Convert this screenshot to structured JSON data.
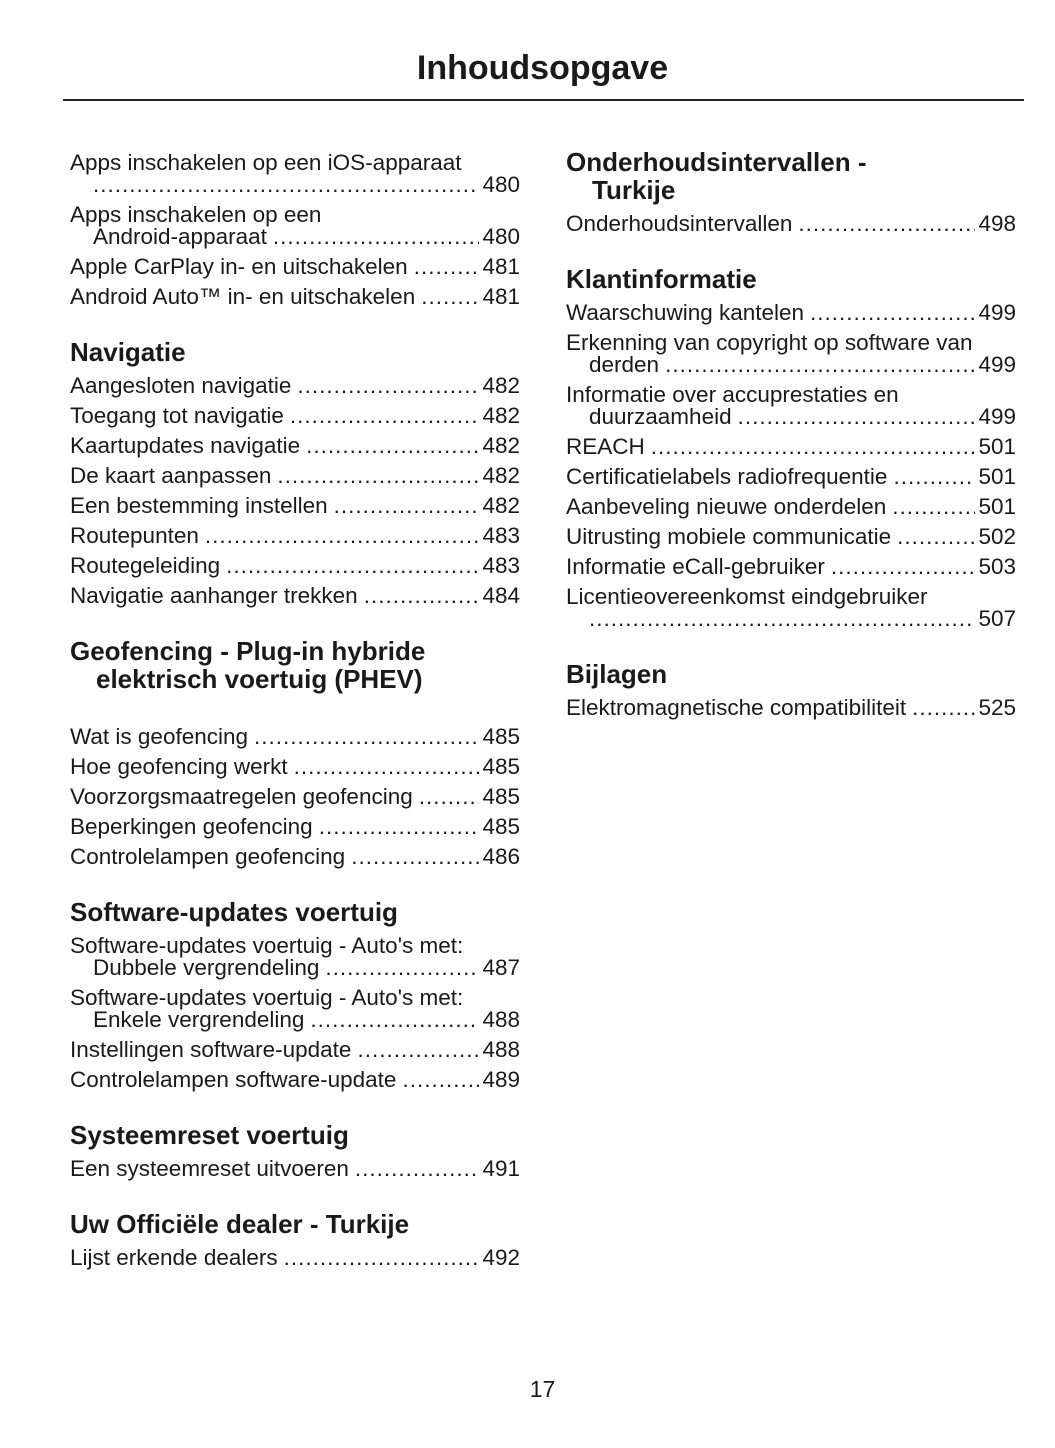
{
  "title": "Inhoudsopgave",
  "page_number": "17",
  "left": [
    {
      "heading": null,
      "entries": [
        {
          "text": "Apps inschakelen op een iOS-apparaat",
          "cont": "",
          "page": "480"
        },
        {
          "text": "Apps inschakelen op een",
          "cont": "Android-apparaat",
          "page": "480"
        },
        {
          "text": "Apple CarPlay in- en uitschakelen",
          "page": "481"
        },
        {
          "text": "Android Auto™ in- en uitschakelen",
          "page": "481"
        }
      ]
    },
    {
      "heading": "Navigatie",
      "entries": [
        {
          "text": "Aangesloten navigatie",
          "page": "482"
        },
        {
          "text": "Toegang tot navigatie",
          "page": "482"
        },
        {
          "text": "Kaartupdates navigatie",
          "page": "482"
        },
        {
          "text": "De kaart aanpassen",
          "page": "482"
        },
        {
          "text": "Een bestemming instellen",
          "page": "482"
        },
        {
          "text": "Routepunten",
          "page": "483"
        },
        {
          "text": "Routegeleiding",
          "page": "483"
        },
        {
          "text": "Navigatie aanhanger trekken",
          "page": "484"
        }
      ]
    },
    {
      "heading": "Geofencing - Plug-in hybride",
      "heading_cont": "elektrisch voertuig (PHEV)",
      "entries": [
        {
          "text": "Wat is geofencing",
          "page": "485"
        },
        {
          "text": "Hoe geofencing werkt",
          "page": "485"
        },
        {
          "text": "Voorzorgsmaatregelen geofencing",
          "page": "485"
        },
        {
          "text": "Beperkingen geofencing",
          "page": "485"
        },
        {
          "text": "Controlelampen geofencing",
          "page": "486"
        }
      ]
    },
    {
      "heading": "Software-updates voertuig",
      "entries": [
        {
          "text": "Software-updates voertuig - Auto's met:",
          "cont": "Dubbele vergrendeling",
          "page": "487"
        },
        {
          "text": "Software-updates voertuig - Auto's met:",
          "cont": "Enkele vergrendeling",
          "page": "488"
        },
        {
          "text": "Instellingen software-update",
          "page": "488"
        },
        {
          "text": "Controlelampen software-update",
          "page": "489"
        }
      ]
    },
    {
      "heading": "Systeemreset voertuig",
      "entries": [
        {
          "text": "Een systeemreset uitvoeren",
          "page": "491"
        }
      ]
    },
    {
      "heading": "Uw Officiële dealer - Turkije",
      "entries": [
        {
          "text": "Lijst erkende dealers",
          "page": "492"
        }
      ]
    }
  ],
  "right": [
    {
      "heading": "Onderhoudsintervallen -",
      "heading_cont": "Turkije",
      "entries": [
        {
          "text": "Onderhoudsintervallen",
          "page": "498"
        }
      ]
    },
    {
      "heading": "Klantinformatie",
      "entries": [
        {
          "text": "Waarschuwing kantelen",
          "page": "499"
        },
        {
          "text": "Erkenning van copyright op software van",
          "cont": "derden",
          "page": "499"
        },
        {
          "text": "Informatie over accuprestaties en",
          "cont": "duurzaamheid",
          "page": "499"
        },
        {
          "text": "REACH",
          "page": "501"
        },
        {
          "text": "Certificatielabels radiofrequentie",
          "page": "501"
        },
        {
          "text": "Aanbeveling nieuwe onderdelen",
          "page": "501"
        },
        {
          "text": "Uitrusting mobiele communicatie",
          "page": "502"
        },
        {
          "text": "Informatie eCall-gebruiker",
          "page": "503"
        },
        {
          "text": "Licentieovereenkomst eindgebruiker",
          "cont": "",
          "page": "507"
        }
      ]
    },
    {
      "heading": "Bijlagen",
      "entries": [
        {
          "text": "Elektromagnetische compatibiliteit",
          "page": "525"
        }
      ]
    }
  ]
}
